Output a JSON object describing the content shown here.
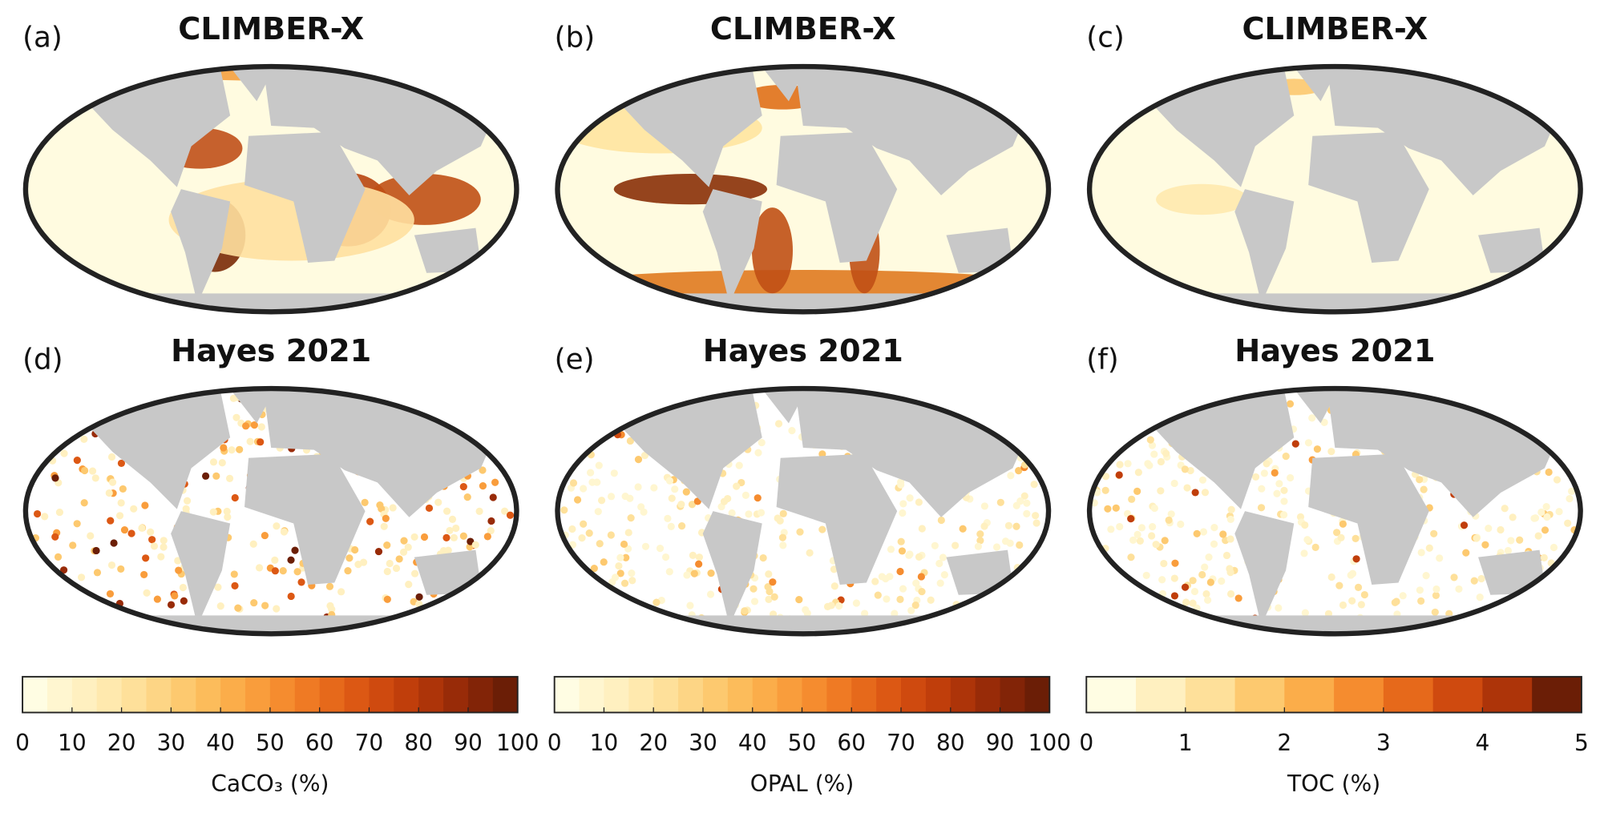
{
  "panels": [
    {
      "label": "(a)",
      "title": "CLIMBER-X"
    },
    {
      "label": "(b)",
      "title": "CLIMBER-X"
    },
    {
      "label": "(c)",
      "title": "CLIMBER-X"
    },
    {
      "label": "(d)",
      "title": "Hayes 2021"
    },
    {
      "label": "(e)",
      "title": "Hayes 2021"
    },
    {
      "label": "(f)",
      "title": "Hayes 2021"
    }
  ],
  "colorbars": [
    {
      "label": "CaCO₃ (%)",
      "lim": [
        0,
        100
      ],
      "ticks": [
        0,
        10,
        20,
        30,
        40,
        50,
        60,
        70,
        80,
        90,
        100
      ],
      "colors": [
        "#fffde3",
        "#fff6d0",
        "#fff0c0",
        "#ffe9ae",
        "#fee09a",
        "#fdd585",
        "#fdc96f",
        "#fcbc5b",
        "#fbad4a",
        "#f99d3c",
        "#f58c2f",
        "#ef7a24",
        "#e6691b",
        "#dc5814",
        "#cf4a0f",
        "#c03e0b",
        "#ad3409",
        "#982b08",
        "#822407",
        "#6b1e06"
      ]
    },
    {
      "label": "OPAL (%)",
      "lim": [
        0,
        100
      ],
      "ticks": [
        0,
        10,
        20,
        30,
        40,
        50,
        60,
        70,
        80,
        90,
        100
      ],
      "colors": [
        "#fffde3",
        "#fff6d0",
        "#fff0c0",
        "#ffe9ae",
        "#fee09a",
        "#fdd585",
        "#fdc96f",
        "#fcbc5b",
        "#fbad4a",
        "#f99d3c",
        "#f58c2f",
        "#ef7a24",
        "#e6691b",
        "#dc5814",
        "#cf4a0f",
        "#c03e0b",
        "#ad3409",
        "#982b08",
        "#822407",
        "#6b1e06"
      ]
    },
    {
      "label": "TOC (%)",
      "lim": [
        0,
        5
      ],
      "ticks": [
        0,
        1,
        2,
        3,
        4,
        5
      ],
      "colors": [
        "#fffde3",
        "#fff0c0",
        "#fee09a",
        "#fdc96f",
        "#fbad4a",
        "#f58c2f",
        "#e6691b",
        "#cf4a0f",
        "#ad3409",
        "#6b1e06"
      ]
    }
  ]
}
